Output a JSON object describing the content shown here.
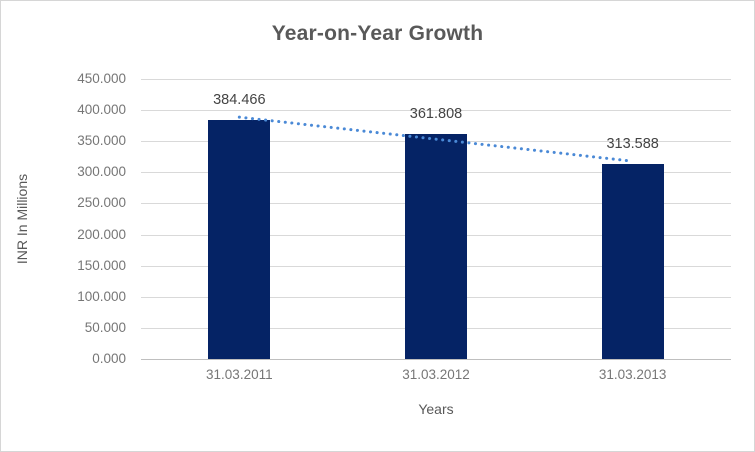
{
  "chart_data": {
    "type": "bar",
    "title": "Year-on-Year Growth",
    "xlabel": "Years",
    "ylabel": "INR In Millions",
    "categories": [
      "31.03.2011",
      "31.03.2012",
      "31.03.2013"
    ],
    "values": [
      384.466,
      361.808,
      313.588
    ],
    "value_labels": [
      "384.466",
      "361.808",
      "313.588"
    ],
    "ylim": [
      0,
      450
    ],
    "y_ticks": [
      {
        "value": 0,
        "label": "0.000"
      },
      {
        "value": 50,
        "label": "50.000"
      },
      {
        "value": 100,
        "label": "100.000"
      },
      {
        "value": 150,
        "label": "150.000"
      },
      {
        "value": 200,
        "label": "200.000"
      },
      {
        "value": 250,
        "label": "250.000"
      },
      {
        "value": 300,
        "label": "300.000"
      },
      {
        "value": 350,
        "label": "350.000"
      },
      {
        "value": 400,
        "label": "400.000"
      },
      {
        "value": 450,
        "label": "450.000"
      }
    ],
    "grid": true,
    "legend": "none",
    "trendline": {
      "type": "linear",
      "style": "dotted"
    },
    "colors": {
      "bar": "#052365",
      "trendline": "#4a89d6",
      "gridline": "#d9d9d9",
      "axis_line": "#bfbfbf",
      "title_text": "#595959",
      "tick_text": "#767676",
      "data_label_text": "#444444"
    }
  }
}
